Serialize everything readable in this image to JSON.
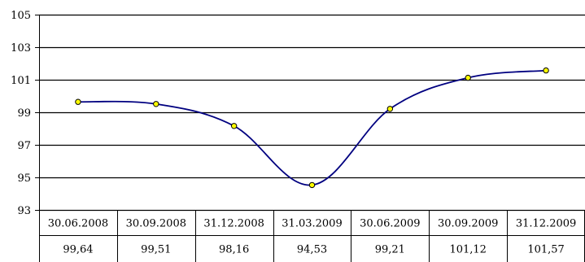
{
  "chart_data": {
    "type": "line",
    "categories": [
      "30.06.2008",
      "30.09.2008",
      "31.12.2008",
      "31.03.2009",
      "30.06.2009",
      "30.09.2009",
      "31.12.2009"
    ],
    "series": [
      {
        "values": [
          99.64,
          99.51,
          98.16,
          94.53,
          99.21,
          101.12,
          101.57
        ]
      }
    ],
    "value_labels": [
      "99,64",
      "99,51",
      "98,16",
      "94,53",
      "99,21",
      "101,12",
      "101,57"
    ],
    "ylim": [
      93,
      105
    ],
    "yticks": [
      93,
      95,
      97,
      99,
      101,
      103,
      105
    ],
    "grid": true,
    "legend": "none",
    "data_table": true,
    "colors": {
      "line": "#000080",
      "marker_fill": "#ffff00",
      "marker_stroke": "#000000",
      "grid": "#000000",
      "background": "#ffffff"
    }
  }
}
